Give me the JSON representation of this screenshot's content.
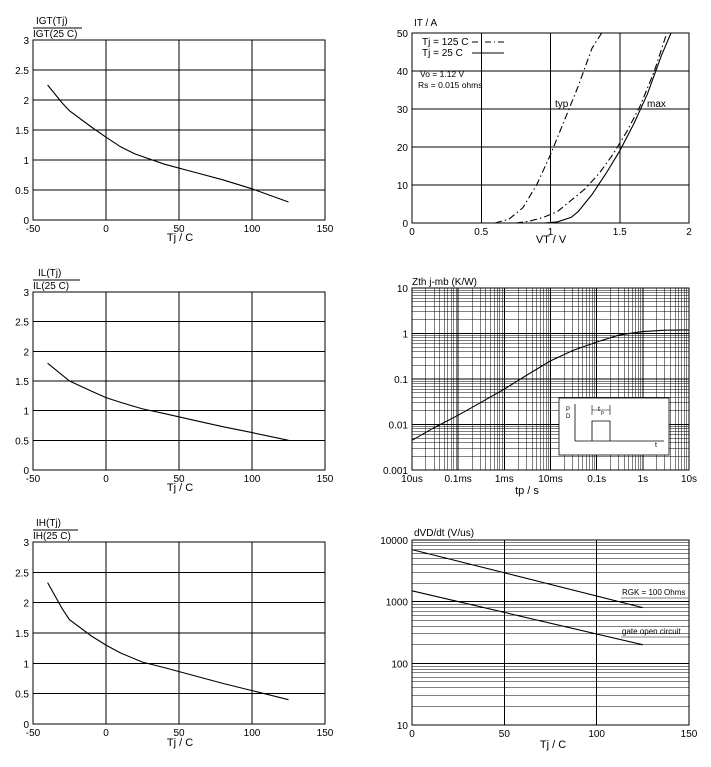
{
  "chart_data": [
    {
      "type": "line",
      "ylabel_num": "IGT(Tj)",
      "ylabel_den": "IGT(25 C)",
      "xlabel": "Tj / C",
      "xlim": [
        -50,
        150
      ],
      "ylim": [
        0,
        3
      ],
      "xticks": [
        -50,
        0,
        50,
        100,
        150
      ],
      "yticks": [
        0,
        0.5,
        1,
        1.5,
        2,
        2.5,
        3
      ],
      "xticklabels": [
        "-50",
        "0",
        "50",
        "100",
        "150"
      ],
      "yticklabels": [
        "0",
        "0.5",
        "1",
        "1.5",
        "2",
        "2.5",
        "3"
      ],
      "grid": true,
      "series": [
        {
          "x": [
            -40,
            -30,
            -25,
            -10,
            0,
            10,
            20,
            40,
            60,
            80,
            100,
            125
          ],
          "y": [
            2.25,
            1.95,
            1.82,
            1.55,
            1.38,
            1.22,
            1.1,
            0.93,
            0.8,
            0.67,
            0.52,
            0.3
          ]
        }
      ]
    },
    {
      "type": "line",
      "ylabel": "IT / A",
      "xlabel": "VT / V",
      "xlim": [
        0,
        2
      ],
      "ylim": [
        0,
        50
      ],
      "xticks": [
        0,
        0.5,
        1,
        1.5,
        2
      ],
      "yticks": [
        0,
        10,
        20,
        30,
        40,
        50
      ],
      "xticklabels": [
        "0",
        "0.5",
        "1",
        "1.5",
        "2"
      ],
      "yticklabels": [
        "0",
        "10",
        "20",
        "30",
        "40",
        "50"
      ],
      "grid": true,
      "legend": {
        "entries": [
          "Tj = 125 C",
          "Tj = 25 C"
        ],
        "position": "top-left"
      },
      "annotations": [
        "Vo = 1.12 V",
        "Rs = 0.015 ohms",
        "typ",
        "max"
      ],
      "series": [
        {
          "name": "Tj = 125 C",
          "dash": "dashdot",
          "x": [
            0.6,
            0.7,
            0.8,
            0.9,
            1.0,
            1.1,
            1.2,
            1.3,
            1.37
          ],
          "y": [
            0,
            1,
            4,
            10,
            18,
            27,
            36,
            46,
            50
          ]
        },
        {
          "name": "Tj = 25 C",
          "dash": "dashdot",
          "x": [
            0.75,
            0.85,
            0.95,
            1.05,
            1.15,
            1.25,
            1.35,
            1.45,
            1.55,
            1.65,
            1.75,
            1.84
          ],
          "y": [
            0,
            0.5,
            1.5,
            3,
            6,
            9,
            13,
            18,
            24,
            31,
            40,
            50
          ]
        },
        {
          "name": "Tj = 25 C",
          "dash": "solid",
          "x": [
            0.95,
            1.05,
            1.15,
            1.2,
            1.3,
            1.4,
            1.5,
            1.6,
            1.7,
            1.8,
            1.87
          ],
          "y": [
            0,
            0.3,
            1.5,
            3,
            7.5,
            13,
            19,
            26,
            34,
            44,
            50
          ]
        }
      ]
    },
    {
      "type": "line",
      "ylabel_num": "IL(Tj)",
      "ylabel_den": "IL(25 C)",
      "xlabel": "Tj / C",
      "xlim": [
        -50,
        150
      ],
      "ylim": [
        0,
        3
      ],
      "xticks": [
        -50,
        0,
        50,
        100,
        150
      ],
      "yticks": [
        0,
        0.5,
        1,
        1.5,
        2,
        2.5,
        3
      ],
      "xticklabels": [
        "-50",
        "0",
        "50",
        "100",
        "150"
      ],
      "yticklabels": [
        "0",
        "0.5",
        "1",
        "1.5",
        "2",
        "2.5",
        "3"
      ],
      "grid": true,
      "series": [
        {
          "x": [
            -40,
            -30,
            -25,
            -10,
            0,
            10,
            25,
            40,
            60,
            80,
            100,
            125
          ],
          "y": [
            1.8,
            1.6,
            1.5,
            1.33,
            1.22,
            1.14,
            1.03,
            0.95,
            0.84,
            0.73,
            0.63,
            0.5
          ]
        }
      ]
    },
    {
      "type": "line",
      "ylabel": "Zth j-mb  (K/W)",
      "xlabel": "tp / s",
      "xscale": "log",
      "yscale": "log",
      "xlim": [
        1e-05,
        10
      ],
      "ylim": [
        0.001,
        10
      ],
      "xticks": [
        1e-05,
        0.0001,
        0.001,
        0.01,
        0.1,
        1,
        10
      ],
      "yticks": [
        0.001,
        0.01,
        0.1,
        1,
        10
      ],
      "xticklabels": [
        "10us",
        "0.1ms",
        "1ms",
        "10ms",
        "0.1s",
        "1s",
        "10s"
      ],
      "yticklabels": [
        "0.001",
        "0.01",
        "0.1",
        "1",
        "10"
      ],
      "grid": true,
      "inset_labels": [
        "P",
        "D",
        "t",
        "p",
        "t"
      ],
      "series": [
        {
          "x": [
            1e-05,
            3e-05,
            0.0001,
            0.0003,
            0.001,
            0.003,
            0.01,
            0.03,
            0.1,
            0.3,
            1,
            3,
            10
          ],
          "y": [
            0.0045,
            0.0085,
            0.016,
            0.03,
            0.06,
            0.12,
            0.25,
            0.42,
            0.65,
            0.92,
            1.1,
            1.18,
            1.2
          ]
        }
      ]
    },
    {
      "type": "line",
      "ylabel_num": "IH(Tj)",
      "ylabel_den": "IH(25 C)",
      "xlabel": "Tj / C",
      "xlim": [
        -50,
        150
      ],
      "ylim": [
        0,
        3
      ],
      "xticks": [
        -50,
        0,
        50,
        100,
        150
      ],
      "yticks": [
        0,
        0.5,
        1,
        1.5,
        2,
        2.5,
        3
      ],
      "xticklabels": [
        "-50",
        "0",
        "50",
        "100",
        "150"
      ],
      "yticklabels": [
        "0",
        "0.5",
        "1",
        "1.5",
        "2",
        "2.5",
        "3"
      ],
      "grid": true,
      "series": [
        {
          "x": [
            -40,
            -30,
            -25,
            -10,
            0,
            10,
            25,
            40,
            60,
            80,
            100,
            125
          ],
          "y": [
            2.33,
            1.9,
            1.72,
            1.45,
            1.3,
            1.17,
            1.02,
            0.93,
            0.8,
            0.67,
            0.55,
            0.4
          ]
        }
      ]
    },
    {
      "type": "line",
      "ylabel": "dVD/dt (V/us)",
      "xlabel": "Tj / C",
      "yscale": "log",
      "xlim": [
        0,
        150
      ],
      "ylim": [
        10,
        10000
      ],
      "xticks": [
        0,
        50,
        100,
        150
      ],
      "yticks": [
        10,
        100,
        1000,
        10000
      ],
      "xticklabels": [
        "0",
        "50",
        "100",
        "150"
      ],
      "yticklabels": [
        "10",
        "100",
        "1000",
        "10000"
      ],
      "grid": true,
      "annotations": [
        "RGK = 100 Ohms",
        "gate open circuit"
      ],
      "series": [
        {
          "name": "RGK = 100 Ohms",
          "x": [
            0,
            125
          ],
          "y": [
            7000,
            800
          ]
        },
        {
          "name": "gate open circuit",
          "x": [
            0,
            125
          ],
          "y": [
            1500,
            200
          ]
        }
      ]
    }
  ]
}
